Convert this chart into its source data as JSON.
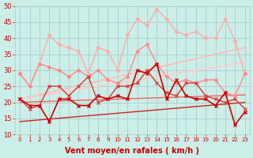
{
  "background_color": "#cceee8",
  "grid_color": "#aacccc",
  "xlabel": "Vent moyen/en rafales ( km/h )",
  "xlabel_color": "#cc0000",
  "tick_color": "#cc0000",
  "x": [
    0,
    1,
    2,
    3,
    4,
    5,
    6,
    7,
    8,
    9,
    10,
    11,
    12,
    13,
    14,
    15,
    16,
    17,
    18,
    19,
    20,
    21,
    22,
    23
  ],
  "ylim": [
    10,
    50
  ],
  "xlim": [
    -0.5,
    23.5
  ],
  "yticks": [
    10,
    15,
    20,
    25,
    30,
    35,
    40,
    45,
    50
  ],
  "lines": [
    {
      "y": [
        21,
        19,
        19,
        14,
        21,
        21,
        19,
        19,
        22,
        21,
        22,
        21,
        30,
        29,
        32,
        21,
        27,
        22,
        21,
        21,
        19,
        23,
        13,
        17
      ],
      "color": "#cc0000",
      "lw": 1.2,
      "marker": "x",
      "ms": 3,
      "mew": 1.0,
      "zorder": 8
    },
    {
      "y": [
        21,
        18,
        19,
        25,
        25,
        22,
        25,
        28,
        20,
        21,
        25,
        25,
        26,
        30,
        26,
        23,
        22,
        26,
        26,
        22,
        21,
        20,
        21,
        18
      ],
      "color": "#dd3333",
      "lw": 1.0,
      "marker": "x",
      "ms": 2.5,
      "mew": 0.8,
      "zorder": 7
    },
    {
      "y": [
        29,
        25,
        32,
        41,
        38,
        37,
        36,
        29,
        37,
        36,
        30,
        41,
        46,
        44,
        49,
        46,
        42,
        41,
        42,
        40,
        40,
        46,
        39,
        29
      ],
      "color": "#ffaaaa",
      "lw": 1.0,
      "marker": "D",
      "ms": 2.5,
      "mew": 0.5,
      "zorder": 5
    },
    {
      "y": [
        29,
        25,
        32,
        31,
        30,
        28,
        30,
        28,
        30,
        27,
        26,
        28,
        36,
        38,
        32,
        28,
        26,
        27,
        26,
        27,
        27,
        23,
        22,
        29
      ],
      "color": "#ff8888",
      "lw": 1.0,
      "marker": "D",
      "ms": 2.5,
      "mew": 0.5,
      "zorder": 5
    },
    {
      "y": [
        21,
        21.7,
        22.4,
        23.1,
        23.8,
        24.5,
        25.2,
        25.9,
        26.6,
        27.3,
        28.0,
        28.7,
        29.4,
        30.1,
        30.8,
        31.5,
        32.2,
        32.9,
        33.6,
        34.3,
        35.0,
        35.7,
        36.4,
        37.1
      ],
      "color": "#ffbbbb",
      "lw": 1.2,
      "marker": null,
      "ms": 0,
      "mew": 0,
      "zorder": 3
    },
    {
      "y": [
        21,
        21.5,
        22.0,
        22.5,
        23.0,
        23.5,
        24.0,
        24.5,
        25.0,
        25.5,
        26.0,
        26.5,
        27.0,
        27.5,
        28.0,
        28.5,
        29.0,
        29.5,
        30.0,
        30.5,
        31.0,
        31.5,
        32.0,
        32.5
      ],
      "color": "#ffcccc",
      "lw": 1.2,
      "marker": null,
      "ms": 0,
      "mew": 0,
      "zorder": 3
    },
    {
      "y": [
        20,
        20.1,
        20.2,
        20.3,
        20.4,
        20.5,
        20.6,
        20.7,
        20.8,
        20.9,
        21.0,
        21.1,
        21.2,
        21.3,
        21.4,
        21.5,
        21.6,
        21.7,
        21.8,
        21.9,
        22.0,
        22.1,
        22.2,
        22.3
      ],
      "color": "#ee6666",
      "lw": 1.0,
      "marker": null,
      "ms": 0,
      "mew": 0,
      "zorder": 3
    },
    {
      "y": [
        14,
        14.26,
        14.52,
        14.78,
        15.04,
        15.3,
        15.56,
        15.82,
        16.08,
        16.34,
        16.6,
        16.86,
        17.12,
        17.38,
        17.64,
        17.9,
        18.16,
        18.42,
        18.68,
        18.94,
        19.2,
        19.46,
        19.72,
        19.98
      ],
      "color": "#cc2222",
      "lw": 1.0,
      "marker": null,
      "ms": 0,
      "mew": 0,
      "zorder": 3
    }
  ],
  "xtick_fontsize": 5,
  "ytick_fontsize": 6,
  "xlabel_fontsize": 7
}
